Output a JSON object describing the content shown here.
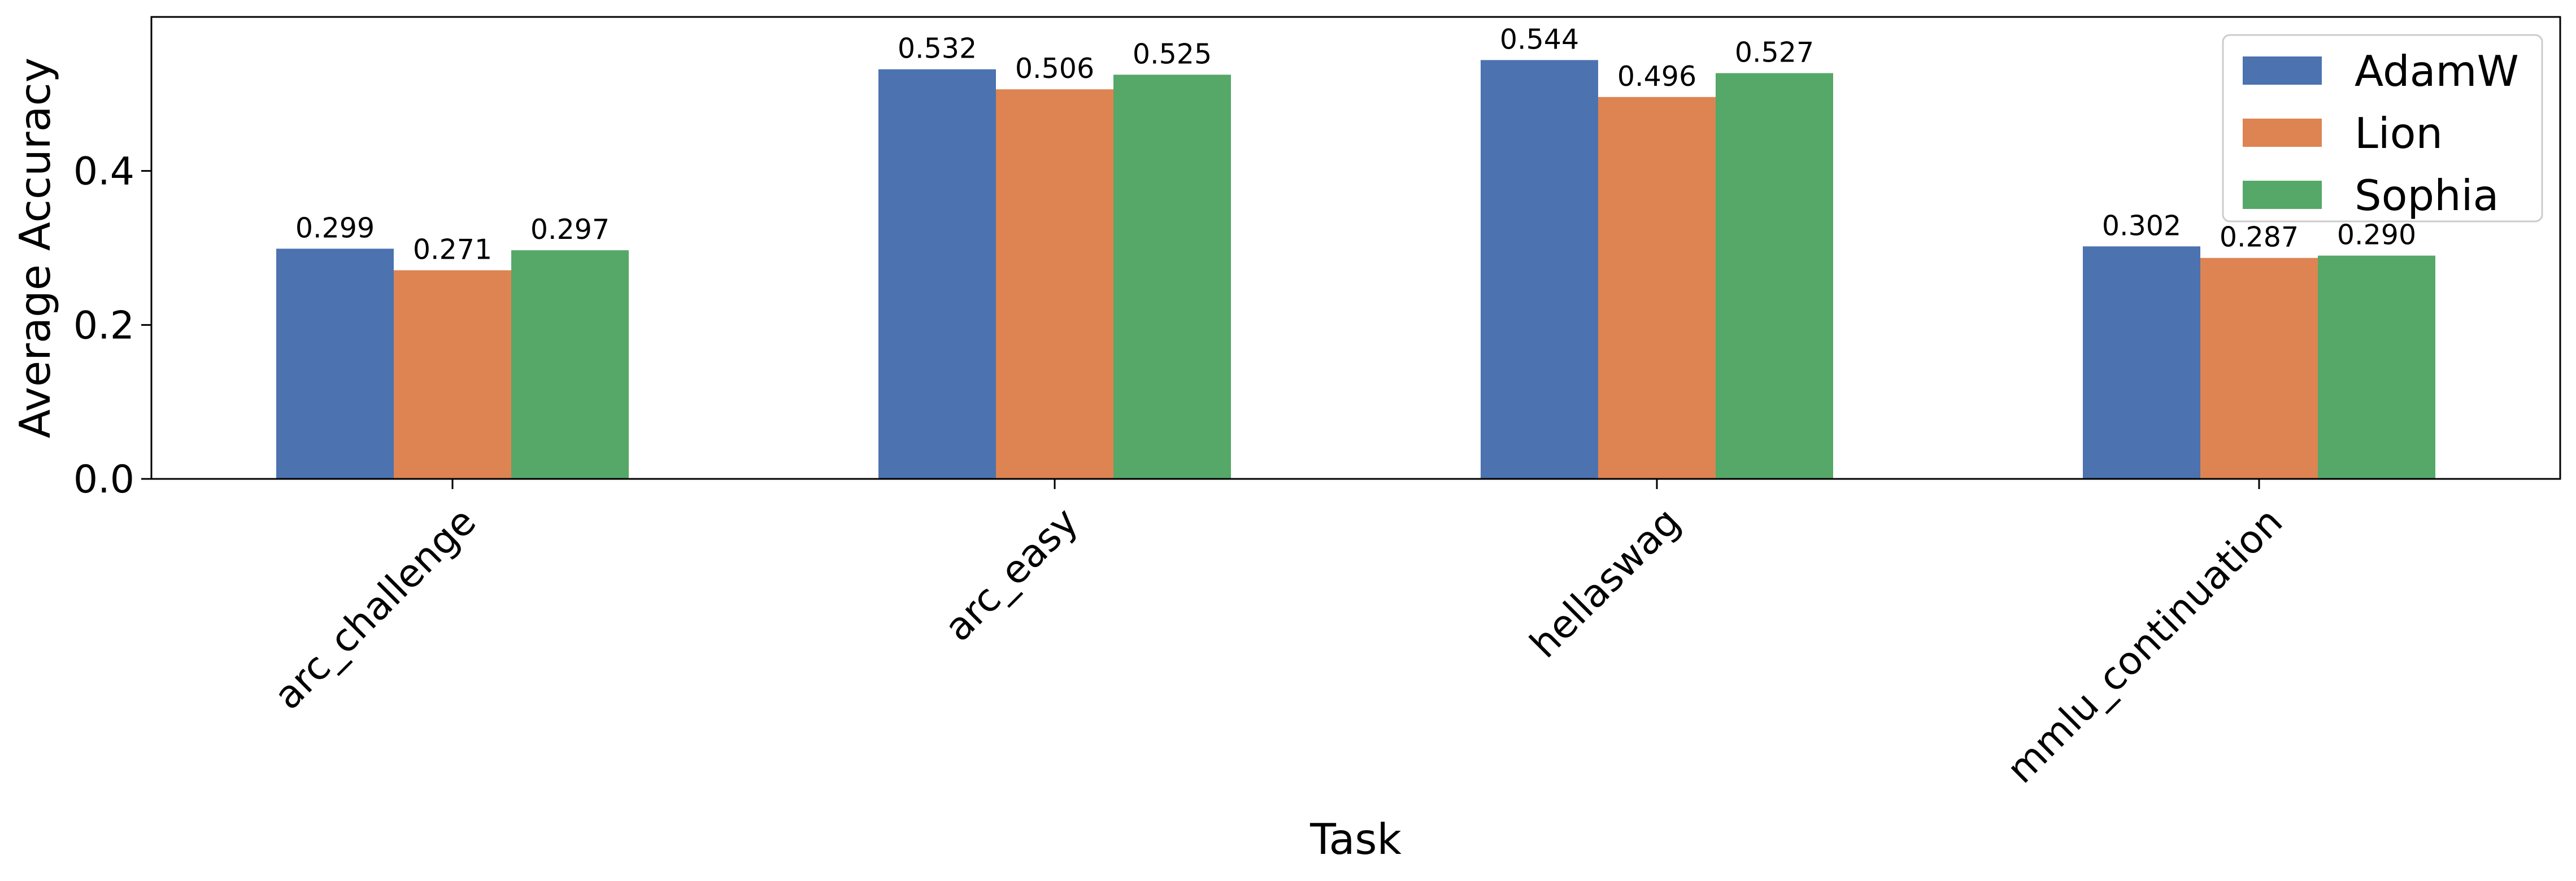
{
  "chart_data": {
    "type": "bar",
    "title": "",
    "xlabel": "Task",
    "ylabel": "Average Accuracy",
    "categories": [
      "arc_challenge",
      "arc_easy",
      "hellaswag",
      "mmlu_continuation"
    ],
    "series": [
      {
        "name": "AdamW",
        "color": "#4c72b0",
        "values": [
          0.299,
          0.532,
          0.544,
          0.302
        ],
        "labels": [
          "0.299",
          "0.532",
          "0.544",
          "0.302"
        ]
      },
      {
        "name": "Lion",
        "color": "#dd8452",
        "values": [
          0.271,
          0.506,
          0.496,
          0.287
        ],
        "labels": [
          "0.271",
          "0.506",
          "0.496",
          "0.287"
        ]
      },
      {
        "name": "Sophia",
        "color": "#55a868",
        "values": [
          0.297,
          0.525,
          0.527,
          0.29
        ],
        "labels": [
          "0.297",
          "0.525",
          "0.527",
          "0.290"
        ]
      }
    ],
    "ylim": [
      0,
      0.6
    ],
    "yticks": [
      {
        "value": 0.0,
        "label": "0.0"
      },
      {
        "value": 0.2,
        "label": "0.2"
      },
      {
        "value": 0.4,
        "label": "0.4"
      }
    ],
    "grid": false,
    "legend_position": "top-right"
  }
}
